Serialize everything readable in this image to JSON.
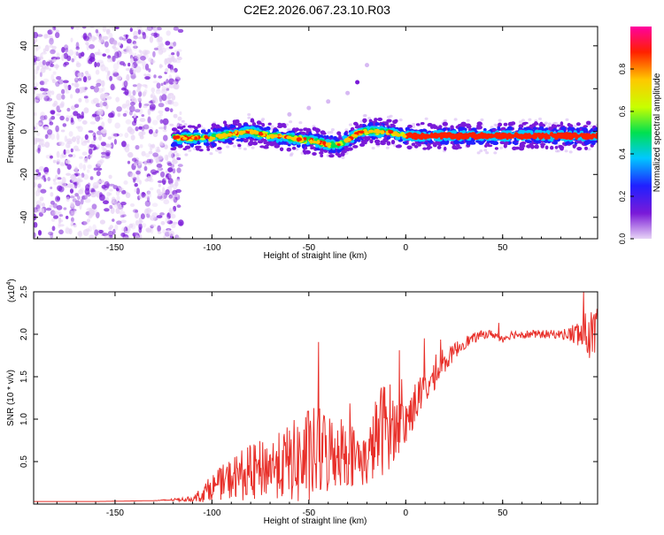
{
  "title": "C2E2.2026.067.23.10.R03",
  "chart_data": [
    {
      "type": "heatmap",
      "title": "C2E2.2026.067.23.10.R03",
      "xlabel": "Height of straight line (km)",
      "ylabel": "Frequency (Hz)",
      "xlim": [
        -192,
        99
      ],
      "ylim": [
        -50,
        49
      ],
      "xticks": [
        -150,
        -100,
        -50,
        0,
        50
      ],
      "xtick_labels": [
        "-150",
        "-100",
        "-50",
        "0",
        "50"
      ],
      "yticks": [
        40,
        20,
        0,
        -20,
        -40
      ],
      "ytick_labels": [
        "40",
        "20",
        "0",
        "-20",
        "-40"
      ],
      "colorbar": {
        "label": "Normalized spectral amplitude",
        "range": [
          0,
          1
        ],
        "ticks": [
          0.0,
          0.2,
          0.4,
          0.6,
          0.8
        ],
        "tick_labels": [
          "0.0",
          "0.2",
          "0.4",
          "0.6",
          "0.8"
        ],
        "colormap": [
          "#e7d4f5",
          "#7a1ad8",
          "#2020ff",
          "#00c8ff",
          "#00e050",
          "#c8ff00",
          "#ffc800",
          "#ff2000",
          "#ff00a0"
        ]
      },
      "noise_region_x": [
        -192,
        -120
      ],
      "ridge": {
        "x": [
          -120,
          -110,
          -100,
          -90,
          -80,
          -70,
          -60,
          -50,
          -40,
          -35,
          -30,
          -25,
          -20,
          -10,
          0,
          10,
          20,
          40,
          60,
          80,
          99
        ],
        "y": [
          -3,
          -3,
          -3,
          -1,
          0,
          -2,
          -3,
          -4,
          -6,
          -6,
          -4,
          -1,
          0,
          0,
          -2,
          -2,
          -2,
          -2,
          -2,
          -2,
          -2
        ]
      },
      "echo": {
        "x": [
          -60,
          -50,
          -40,
          -30,
          -25,
          -20
        ],
        "y": [
          8,
          11,
          14,
          18,
          23,
          31
        ]
      }
    },
    {
      "type": "line",
      "xlabel": "Height of straight line (km)",
      "ylabel": "SNR (10 * v/v)",
      "y_multiplier": "(x10",
      "y_multiplier_exp": "4",
      "y_multiplier_close": ")",
      "xlim": [
        -192,
        99
      ],
      "ylim": [
        0,
        2.5
      ],
      "xticks": [
        -150,
        -100,
        -50,
        0,
        50
      ],
      "xtick_labels": [
        "-150",
        "-100",
        "-50",
        "0",
        "50"
      ],
      "yticks": [
        0.5,
        1.0,
        1.5,
        2.0,
        2.5
      ],
      "ytick_labels": [
        "0.5",
        "1.0",
        "1.5",
        "2.0",
        "2.5"
      ],
      "series": [
        {
          "name": "SNR",
          "color": "#e8302a",
          "x": [
            -192,
            -160,
            -130,
            -110,
            -105,
            -100,
            -95,
            -90,
            -85,
            -80,
            -75,
            -70,
            -65,
            -60,
            -55,
            -50,
            -45,
            -40,
            -35,
            -30,
            -25,
            -20,
            -15,
            -10,
            -5,
            0,
            5,
            10,
            15,
            20,
            25,
            30,
            35,
            40,
            45,
            50,
            55,
            60,
            65,
            70,
            75,
            80,
            85,
            90,
            95,
            99
          ],
          "y": [
            0.03,
            0.03,
            0.04,
            0.06,
            0.12,
            0.2,
            0.25,
            0.3,
            0.35,
            0.35,
            0.4,
            0.45,
            0.45,
            0.5,
            0.5,
            0.55,
            0.6,
            0.6,
            0.65,
            0.6,
            0.55,
            0.5,
            0.8,
            0.95,
            0.9,
            0.95,
            1.2,
            1.35,
            1.5,
            1.65,
            1.8,
            1.9,
            1.95,
            2.0,
            2.0,
            1.95,
            2.0,
            2.0,
            2.0,
            2.0,
            2.0,
            2.0,
            2.0,
            2.0,
            2.0,
            2.0
          ],
          "spread": [
            0.0,
            0.0,
            0.0,
            0.03,
            0.1,
            0.15,
            0.2,
            0.25,
            0.3,
            0.35,
            0.35,
            0.35,
            0.4,
            0.45,
            0.55,
            0.6,
            0.55,
            0.5,
            0.45,
            0.4,
            0.35,
            0.3,
            0.5,
            0.6,
            0.35,
            0.3,
            0.25,
            0.2,
            0.15,
            0.12,
            0.1,
            0.08,
            0.06,
            0.05,
            0.05,
            0.05,
            0.05,
            0.05,
            0.05,
            0.05,
            0.05,
            0.05,
            0.1,
            0.2,
            0.3,
            0.3
          ]
        }
      ]
    }
  ]
}
